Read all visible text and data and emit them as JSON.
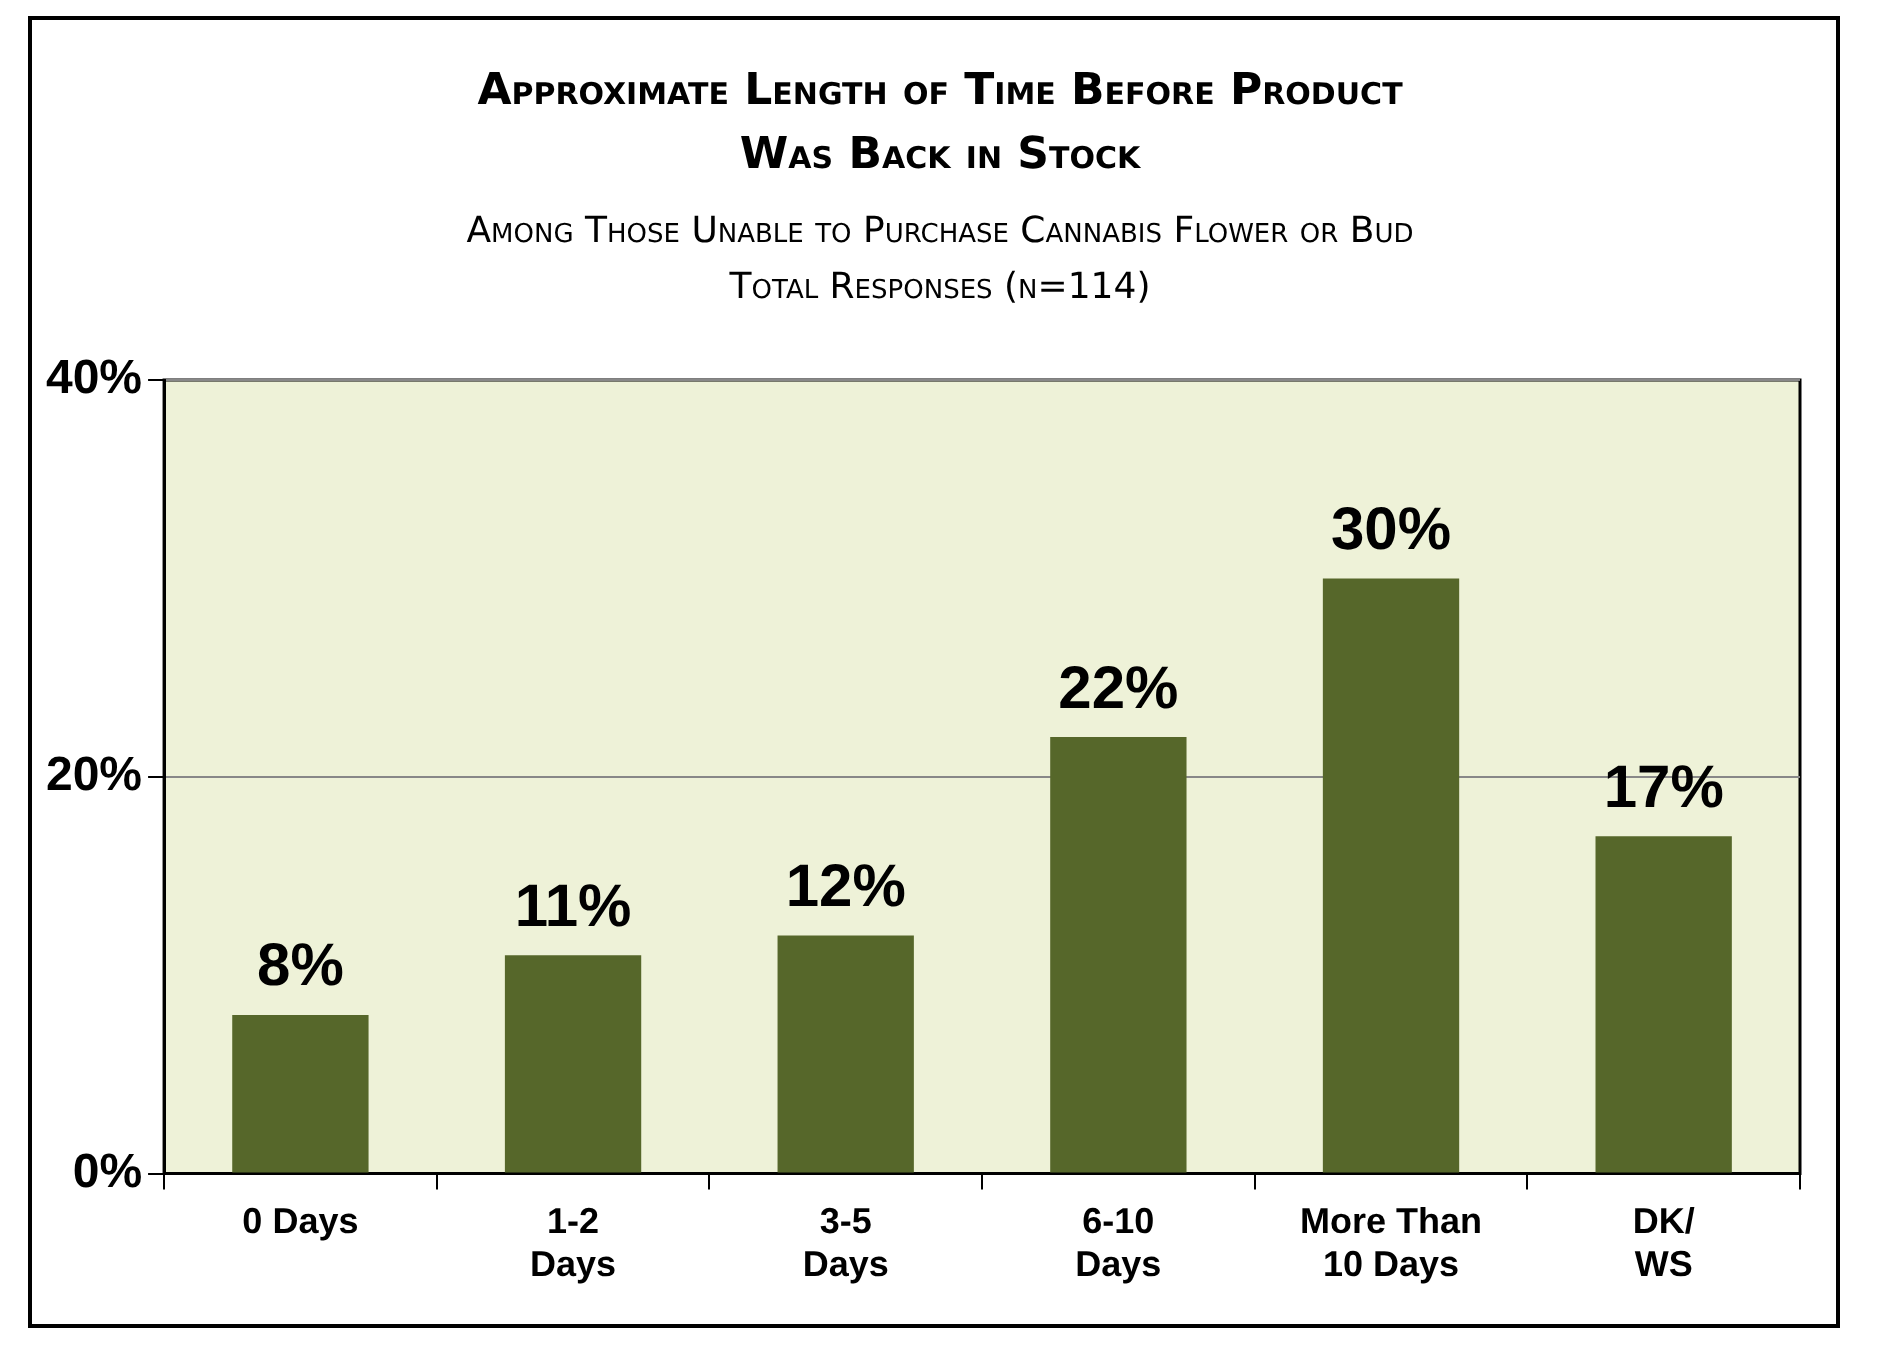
{
  "chart_data": {
    "type": "bar",
    "title": "Approximate Length of Time Before Product\nWas Back in Stock",
    "subtitle": "Among Those Unable to Purchase Cannabis Flower or Bud\nTotal Responses (n=114)",
    "categories": [
      "0 Days",
      "1-2\nDays",
      "3-5\nDays",
      "6-10\nDays",
      "More Than\n10 Days",
      "DK/\nWS"
    ],
    "values": [
      8,
      11,
      12,
      22,
      30,
      17
    ],
    "value_labels": [
      "8%",
      "11%",
      "12%",
      "22%",
      "30%",
      "17%"
    ],
    "color": "#56672a",
    "ylim": [
      0,
      40
    ],
    "yticks": [
      {
        "value": 0,
        "label": "0%"
      },
      {
        "value": 20,
        "label": "20%"
      },
      {
        "value": 40,
        "label": "40%"
      }
    ],
    "grid": "y"
  }
}
